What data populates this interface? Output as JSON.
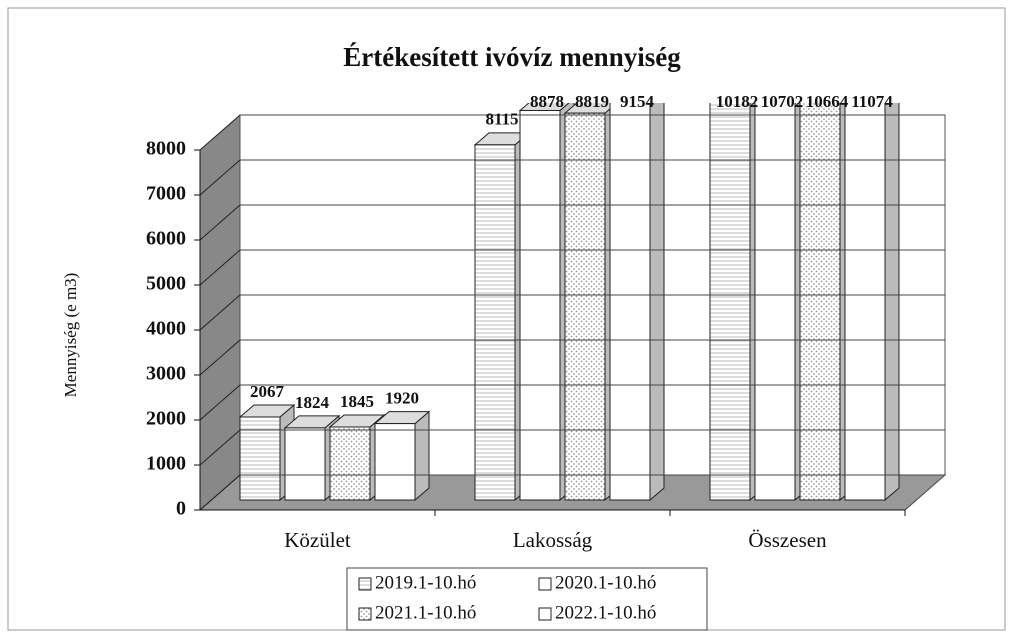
{
  "chart_data": {
    "type": "bar3d",
    "title": "Értékesített ivóvíz mennyiség",
    "y_label": "Mennyiség (e m3)",
    "categories": [
      "Közület",
      "Lakosság",
      "Összesen"
    ],
    "series": [
      {
        "name": "2019.1-10.hó",
        "color": "#ffffff",
        "pattern": "lines",
        "values": [
          2067,
          8115,
          10182
        ]
      },
      {
        "name": "2020.1-10.hó",
        "color": "#ffffff",
        "pattern": "none",
        "values": [
          1824,
          8878,
          10702
        ]
      },
      {
        "name": "2021.1-10.hó",
        "color": "#ffffff",
        "pattern": "dots",
        "values": [
          1845,
          8819,
          10664
        ]
      },
      {
        "name": "2022.1-10.hó",
        "color": "#ffffff",
        "pattern": "none",
        "values": [
          1920,
          9154,
          11074
        ]
      }
    ],
    "ylim": [
      0,
      8000
    ],
    "yticks": [
      0,
      1000,
      2000,
      3000,
      4000,
      5000,
      6000,
      7000,
      8000
    ],
    "grid": true
  }
}
